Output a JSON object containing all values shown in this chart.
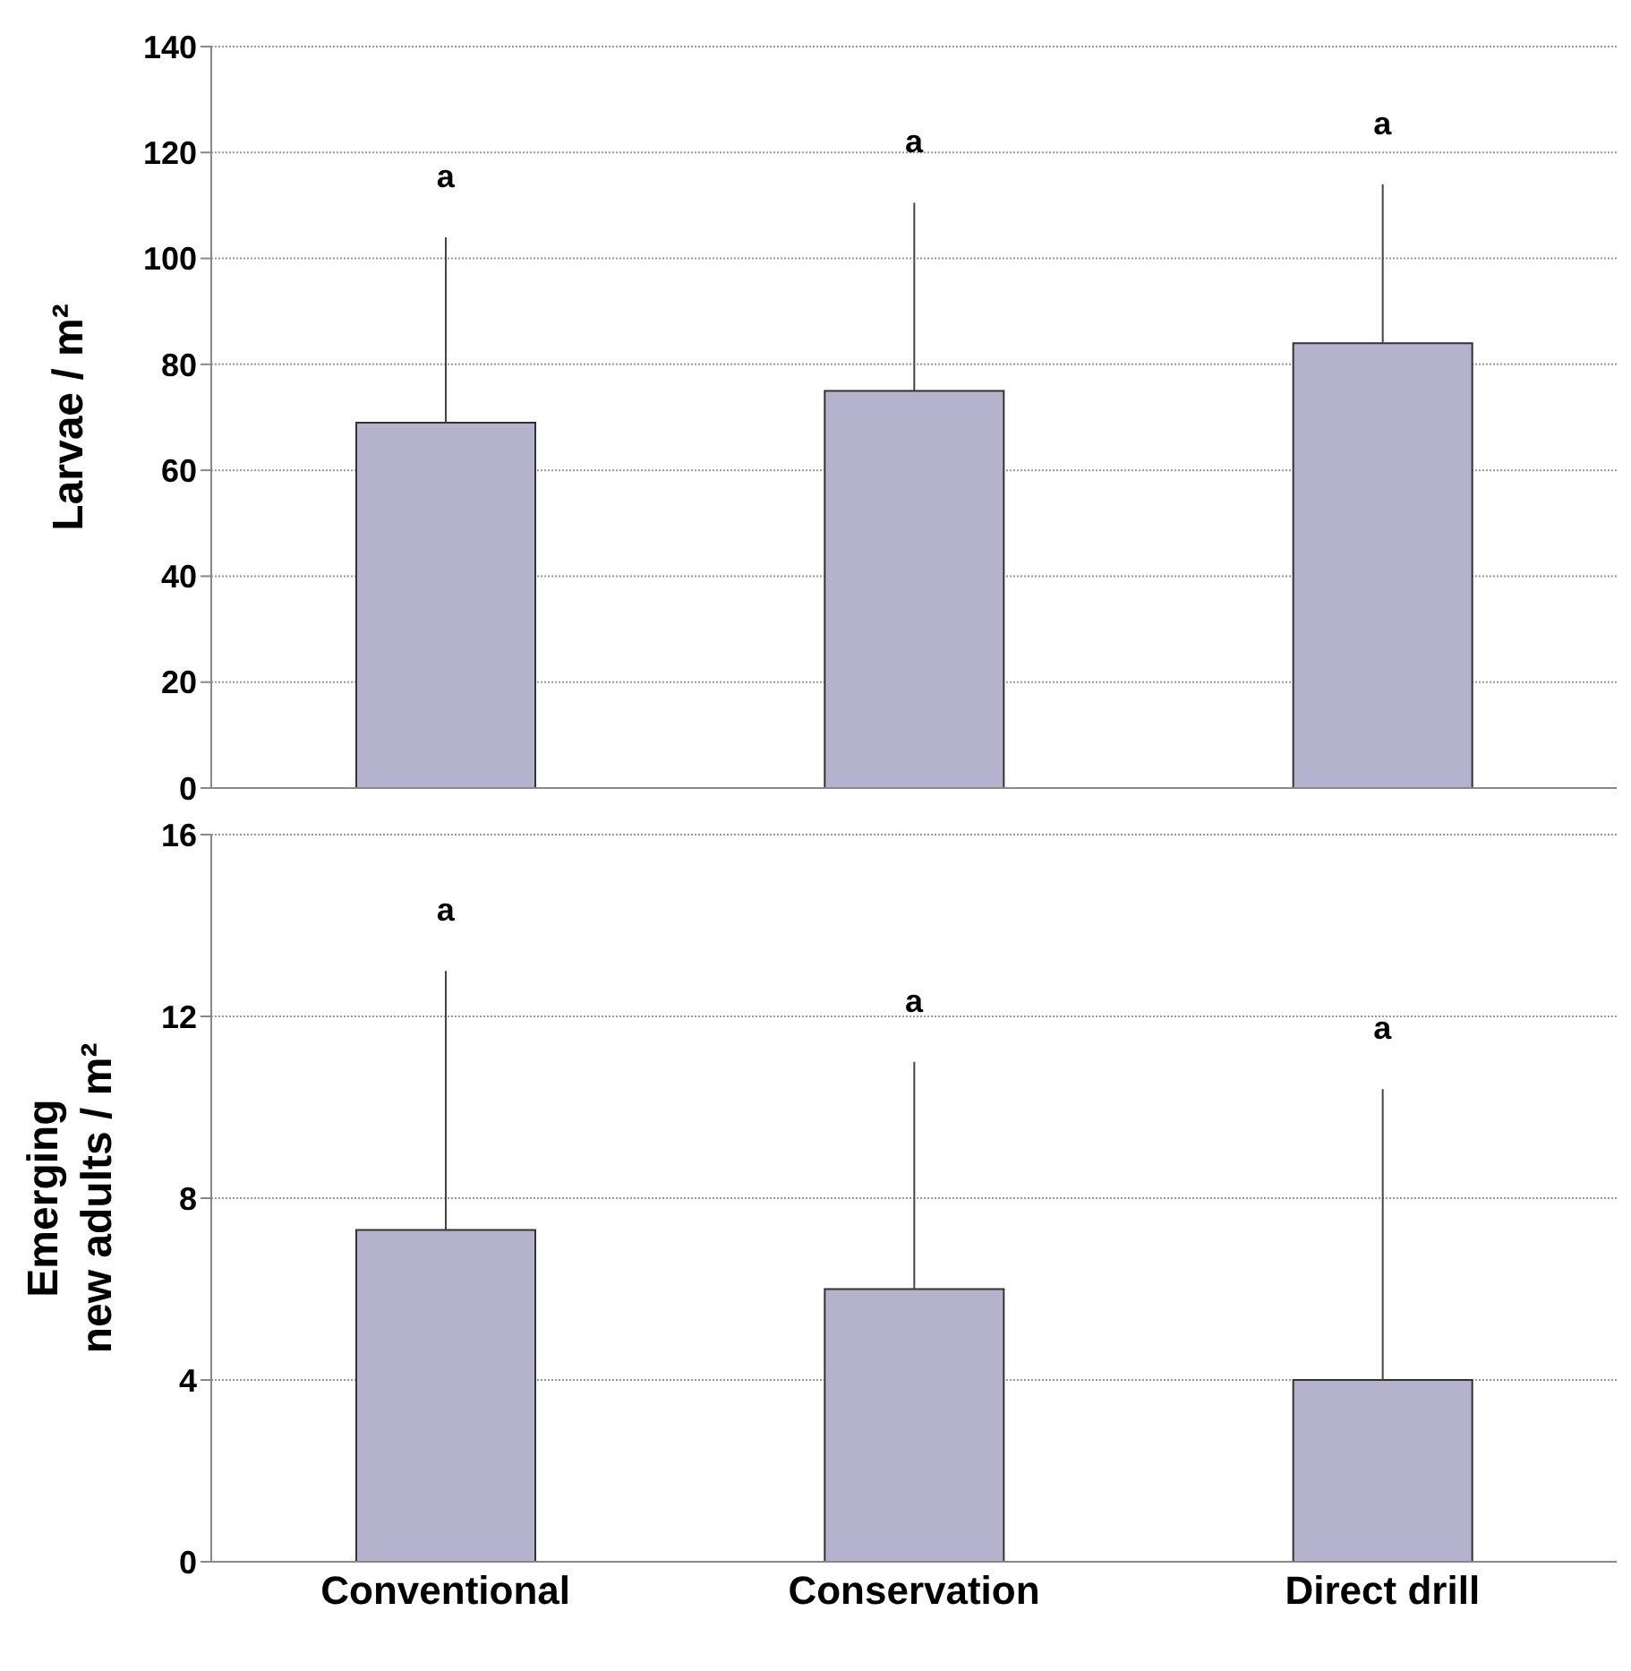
{
  "chart_data": [
    {
      "type": "bar",
      "ylabel": "Larvae / m²",
      "categories": [
        null,
        null,
        null
      ],
      "values": [
        69,
        75,
        84
      ],
      "errors": [
        [
          69,
          104
        ],
        [
          75,
          110.5
        ],
        [
          84,
          114
        ]
      ],
      "color": "#b4b2cc",
      "ylim": [
        0,
        140
      ],
      "yticks": [
        0,
        20,
        40,
        60,
        80,
        100,
        120,
        140
      ],
      "grid": "y",
      "tick_labels": "y",
      "annotations": [
        "a",
        "a",
        "a"
      ]
    },
    {
      "type": "bar",
      "ylabel": "Emerging\nnew adults / m²",
      "categories": [
        "Conventional",
        "Conservation",
        "Direct drill"
      ],
      "values": [
        7.3,
        6.0,
        4.0
      ],
      "errors": [
        [
          7.3,
          13.0
        ],
        [
          6.0,
          11.0
        ],
        [
          4.0,
          10.4
        ]
      ],
      "color": "#b4b2cc",
      "ylim": [
        0,
        16
      ],
      "yticks": [
        0,
        4,
        8,
        12,
        16
      ],
      "grid": "y",
      "annotations": [
        "a",
        "a",
        "a"
      ]
    }
  ]
}
